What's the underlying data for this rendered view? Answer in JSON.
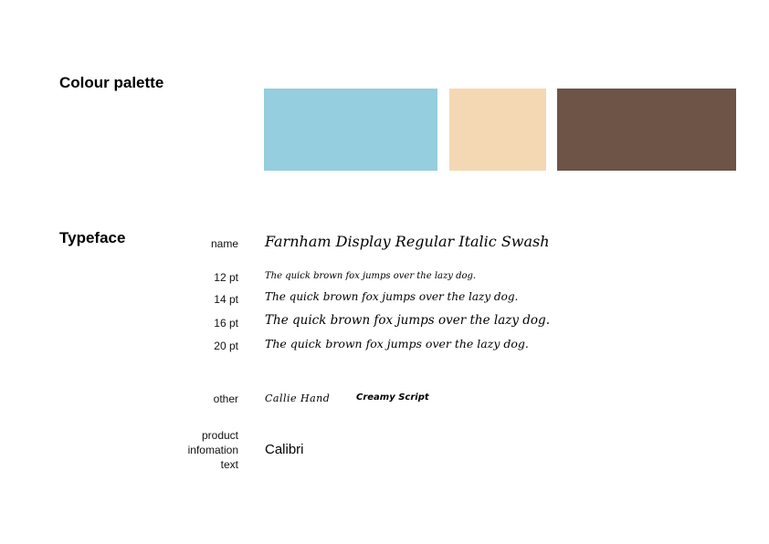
{
  "colour_section": {
    "title": "Colour palette",
    "swatches": [
      {
        "name": "light-blue",
        "color": "#95cede"
      },
      {
        "name": "peach",
        "color": "#f4d8b4"
      },
      {
        "name": "brown",
        "color": "#6e5347"
      }
    ]
  },
  "typeface_section": {
    "title": "Typeface",
    "name_label": "name",
    "font_name": "Farnham Display Regular Italic Swash",
    "samples": [
      {
        "size_label": "12 pt",
        "text": "The quick brown fox jumps over the lazy dog."
      },
      {
        "size_label": "14 pt",
        "text": "The quick brown fox jumps over the lazy dog."
      },
      {
        "size_label": "16 pt",
        "text": "The quick brown fox jumps over the lazy dog."
      },
      {
        "size_label": "20 pt",
        "text": "The quick brown fox jumps over the lazy dog."
      }
    ],
    "other_label": "other",
    "other_fonts": [
      "Callie Hand",
      "Creamy Script"
    ],
    "product_label": [
      "product",
      "infomation",
      "text"
    ],
    "product_font": "Calibri"
  }
}
